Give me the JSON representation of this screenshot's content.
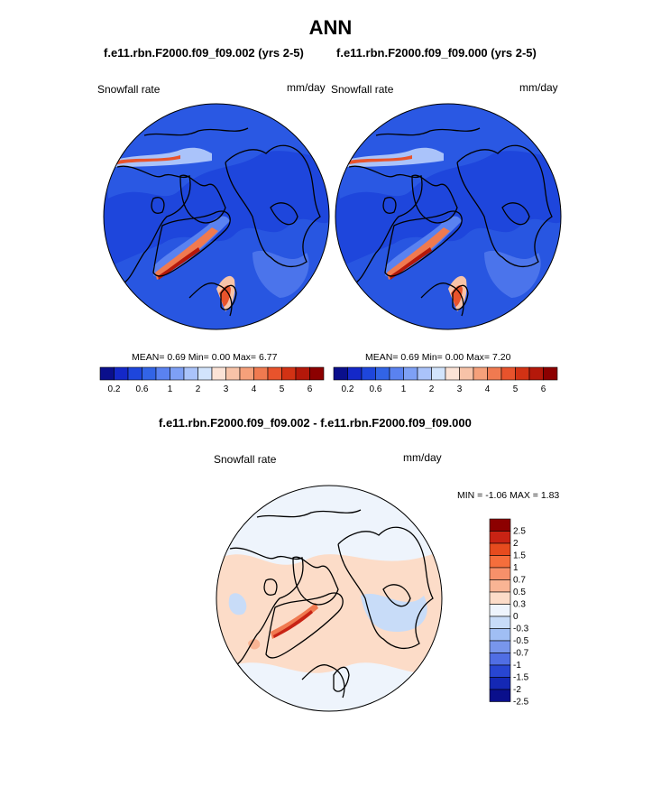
{
  "title": "ANN",
  "panels": [
    {
      "case_title": "f.e11.rbn.F2000.f09_f09.002 (yrs 2-5)",
      "variable": "Snowfall rate",
      "units": "mm/day",
      "stats": {
        "mean_label": "MEAN=",
        "mean": "0.69",
        "min_label": "Min=",
        "min": "0.00",
        "max_label": "Max=",
        "max": "6.77"
      }
    },
    {
      "case_title": "f.e11.rbn.F2000.f09_f09.000 (yrs 2-5)",
      "variable": "Snowfall rate",
      "units": "mm/day",
      "stats": {
        "mean_label": "MEAN=",
        "mean": "0.69",
        "min_label": "Min=",
        "min": "0.00",
        "max_label": "Max=",
        "max": "7.20"
      }
    }
  ],
  "colorbar_top": {
    "colors": [
      "#0a0f8c",
      "#1428c8",
      "#1e46dc",
      "#3264e6",
      "#5a82f0",
      "#7ea0f5",
      "#aac3fa",
      "#d2e4fc",
      "#fbe3d6",
      "#f7c3a8",
      "#f5a07a",
      "#f07a50",
      "#e8532c",
      "#d23214",
      "#b4180a",
      "#8c0000"
    ],
    "tick_labels": [
      "0.2",
      "0.6",
      "1",
      "2",
      "3",
      "4",
      "5",
      "6"
    ]
  },
  "difference": {
    "title": "f.e11.rbn.F2000.f09_f09.002 - f.e11.rbn.F2000.f09_f09.000",
    "variable": "Snowfall rate",
    "units": "mm/day",
    "min_label": "MIN =",
    "min": "-1.06",
    "max_label": "MAX =",
    "max": "1.83",
    "colorbar": {
      "colors": [
        "#8c0000",
        "#c82314",
        "#e64b1e",
        "#f56e3c",
        "#f7906a",
        "#f9b494",
        "#fcdcc8",
        "#eef4fc",
        "#c8dcf8",
        "#a0bef4",
        "#7896ec",
        "#506ee4",
        "#2846d2",
        "#1428b4",
        "#0a0f8c"
      ],
      "labels": [
        "2.5",
        "2",
        "1.5",
        "1",
        "0.7",
        "0.5",
        "0.3",
        "0",
        "-0.3",
        "-0.5",
        "-0.7",
        "-1",
        "-1.5",
        "-2",
        "-2.5"
      ]
    }
  }
}
